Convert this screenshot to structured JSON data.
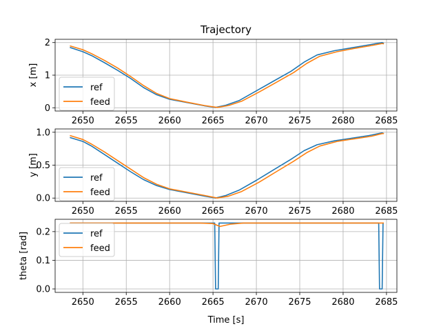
{
  "chart_data": {
    "type": "line",
    "title": "Trajectory",
    "xlabel": "Time [s]",
    "xlim": [
      2646.8,
      2686.2
    ],
    "xticks": [
      2650,
      2655,
      2660,
      2665,
      2670,
      2675,
      2680,
      2685
    ],
    "grid": true,
    "legend_position": "lower-left (top-left in third panel)",
    "colors": {
      "ref": "#1f77b4",
      "feed": "#ff7f0e"
    },
    "subplots": [
      {
        "ylabel": "x [m]",
        "ylim": [
          -0.1,
          2.1
        ],
        "yticks": [
          0,
          1,
          2
        ],
        "legend": [
          "ref",
          "feed"
        ],
        "series": [
          {
            "name": "ref",
            "x": [
              2648.5,
              2650,
              2651,
              2652.5,
              2654,
              2655.5,
              2657,
              2658.5,
              2660,
              2662,
              2664,
              2665.3,
              2666.5,
              2668,
              2670,
              2672,
              2674,
              2675.5,
              2677,
              2679,
              2681,
              2683,
              2684.5,
              2684.7
            ],
            "values": [
              1.85,
              1.72,
              1.6,
              1.38,
              1.15,
              0.9,
              0.62,
              0.4,
              0.26,
              0.16,
              0.06,
              0.01,
              0.08,
              0.22,
              0.52,
              0.82,
              1.12,
              1.4,
              1.62,
              1.75,
              1.84,
              1.93,
              2.0,
              1.98
            ]
          },
          {
            "name": "feed",
            "x": [
              2648.5,
              2650,
              2651,
              2652.5,
              2654,
              2655.5,
              2657,
              2658.5,
              2660,
              2662,
              2664,
              2665.5,
              2666.8,
              2668.3,
              2670.3,
              2672.3,
              2674.3,
              2675.8,
              2677.3,
              2679.3,
              2681.3,
              2683.3,
              2684.5,
              2684.7
            ],
            "values": [
              1.9,
              1.78,
              1.66,
              1.45,
              1.22,
              0.96,
              0.68,
              0.44,
              0.28,
              0.17,
              0.07,
              0.01,
              0.07,
              0.2,
              0.48,
              0.78,
              1.08,
              1.36,
              1.58,
              1.72,
              1.82,
              1.91,
              1.97,
              1.96
            ]
          }
        ]
      },
      {
        "ylabel": "y [m]",
        "ylim": [
          -0.05,
          1.05
        ],
        "yticks": [
          0.0,
          0.5,
          1.0
        ],
        "ytick_labels": [
          "0.0",
          "0.5",
          "1.0"
        ],
        "legend": [
          "ref",
          "feed"
        ],
        "series": [
          {
            "name": "ref",
            "x": [
              2648.5,
              2650,
              2651,
              2652.5,
              2654,
              2655.5,
              2657,
              2658.5,
              2660,
              2662,
              2664,
              2665.3,
              2666.5,
              2668,
              2670,
              2672,
              2674,
              2675.5,
              2677,
              2679,
              2681,
              2683,
              2684.5,
              2684.7
            ],
            "values": [
              0.92,
              0.86,
              0.79,
              0.66,
              0.53,
              0.4,
              0.28,
              0.19,
              0.13,
              0.08,
              0.03,
              0.0,
              0.04,
              0.12,
              0.27,
              0.43,
              0.59,
              0.72,
              0.81,
              0.87,
              0.91,
              0.95,
              0.99,
              0.98
            ]
          },
          {
            "name": "feed",
            "x": [
              2648.5,
              2650,
              2651,
              2652.5,
              2654,
              2655.5,
              2657,
              2658.5,
              2660,
              2662,
              2664,
              2665.5,
              2666.8,
              2668.3,
              2670.3,
              2672.3,
              2674.3,
              2675.8,
              2677.3,
              2679.3,
              2681.3,
              2683.3,
              2684.5,
              2684.7
            ],
            "values": [
              0.95,
              0.89,
              0.82,
              0.7,
              0.57,
              0.44,
              0.31,
              0.21,
              0.14,
              0.09,
              0.04,
              0.0,
              0.03,
              0.1,
              0.24,
              0.4,
              0.56,
              0.69,
              0.79,
              0.86,
              0.9,
              0.94,
              0.98,
              0.98
            ]
          }
        ]
      },
      {
        "ylabel": "theta [rad]",
        "ylim": [
          -0.012,
          0.243
        ],
        "yticks": [
          0.0,
          0.1,
          0.2
        ],
        "ytick_labels": [
          "0.0",
          "0.1",
          "0.2"
        ],
        "legend": [
          "ref",
          "feed"
        ],
        "series": [
          {
            "name": "ref",
            "x": [
              2648.5,
              2665.2,
              2665.3,
              2665.6,
              2665.7,
              2684.1,
              2684.2,
              2684.5,
              2684.6
            ],
            "values": [
              0.23,
              0.23,
              0.0,
              0.0,
              0.23,
              0.23,
              0.0,
              0.0,
              0.23
            ]
          },
          {
            "name": "feed",
            "x": [
              2648.5,
              2663.5,
              2665.0,
              2665.8,
              2667.0,
              2668.5,
              2684.7
            ],
            "values": [
              0.23,
              0.23,
              0.228,
              0.218,
              0.226,
              0.23,
              0.23
            ]
          }
        ]
      }
    ]
  }
}
